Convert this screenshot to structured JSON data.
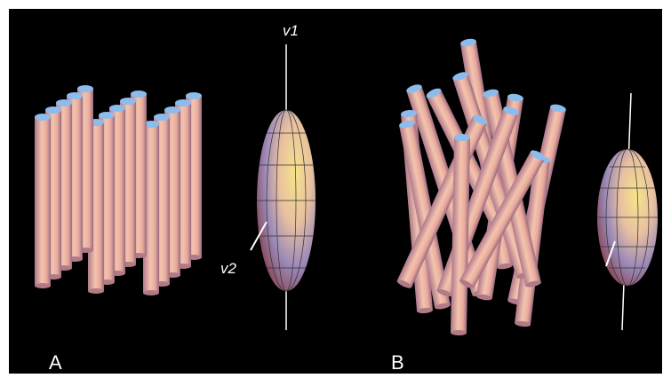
{
  "axes": {
    "v1": "v1",
    "v2": "v2"
  },
  "panels": [
    {
      "label": "A"
    },
    {
      "label": "B"
    }
  ]
}
